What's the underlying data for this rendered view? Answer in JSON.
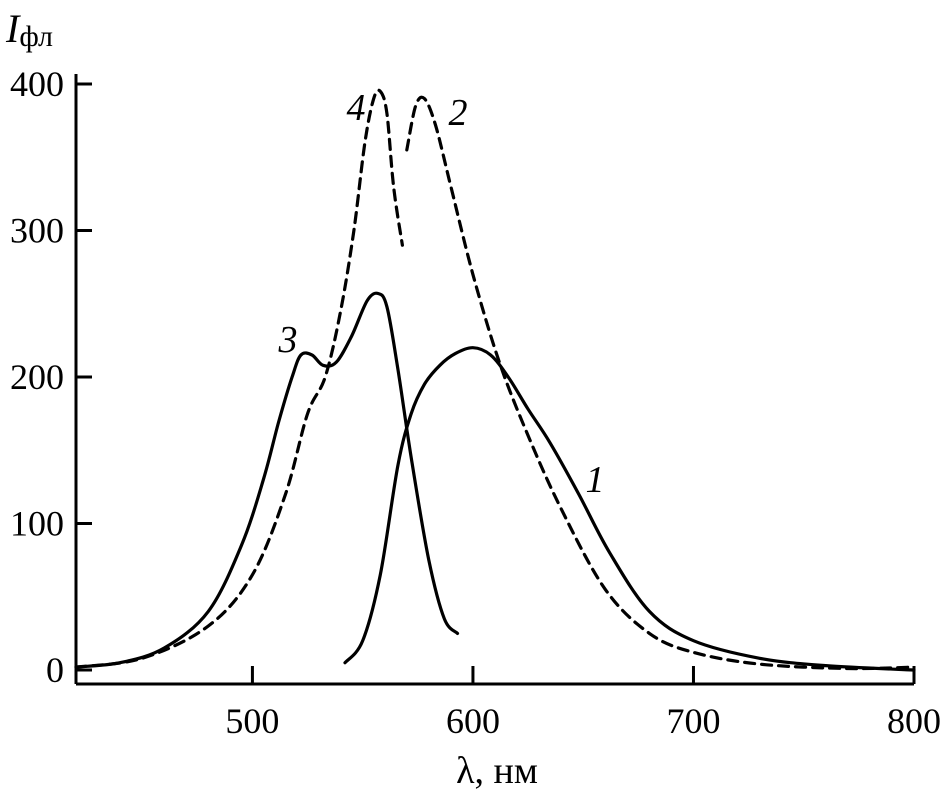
{
  "chart_data": {
    "type": "line",
    "ylabel_main": "I",
    "ylabel_sub": "фл",
    "xlabel": "λ, нм",
    "xlim": [
      420,
      800
    ],
    "ylim": [
      0,
      400
    ],
    "xticks": [
      500,
      600,
      700,
      800
    ],
    "yticks": [
      0,
      100,
      200,
      300,
      400
    ],
    "grid": false,
    "series": [
      {
        "name": "1",
        "style": "solid",
        "x": [
          542,
          550,
          558,
          566,
          572,
          578,
          585,
          592,
          600,
          608,
          616,
          625,
          635,
          648,
          662,
          680,
          700,
          730,
          760,
          800
        ],
        "y": [
          5,
          20,
          65,
          140,
          175,
          195,
          208,
          216,
          220,
          215,
          200,
          178,
          155,
          120,
          80,
          40,
          20,
          8,
          3,
          0
        ]
      },
      {
        "name": "2",
        "style": "dashed",
        "x": [
          570,
          574,
          578,
          583,
          590,
          600,
          612,
          625,
          640,
          660,
          680,
          700,
          730,
          770,
          800
        ],
        "y": [
          355,
          385,
          390,
          372,
          330,
          270,
          210,
          160,
          110,
          55,
          25,
          12,
          4,
          1,
          2
        ]
      },
      {
        "name": "3",
        "style": "solid",
        "x": [
          420,
          440,
          460,
          480,
          495,
          505,
          512,
          518,
          522,
          527,
          532,
          538,
          545,
          552,
          557,
          561,
          566,
          572,
          580,
          587,
          593
        ],
        "y": [
          2,
          5,
          15,
          40,
          85,
          130,
          170,
          200,
          215,
          215,
          208,
          210,
          228,
          252,
          257,
          248,
          205,
          145,
          75,
          35,
          25
        ]
      },
      {
        "name": "4",
        "style": "dashed",
        "x": [
          420,
          450,
          480,
          500,
          515,
          525,
          533,
          540,
          546,
          551,
          555,
          558,
          561,
          564,
          568
        ],
        "y": [
          2,
          8,
          30,
          65,
          120,
          175,
          200,
          245,
          300,
          360,
          390,
          395,
          380,
          330,
          290
        ]
      }
    ]
  }
}
